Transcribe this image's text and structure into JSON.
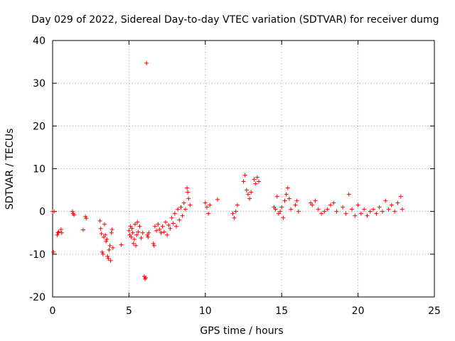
{
  "chart_data": {
    "type": "scatter",
    "title": "Day 029 of 2022, Sidereal Day-to-day VTEC variation (SDTVAR) for receiver dumg",
    "xlabel": "GPS time / hours",
    "ylabel": "SDTVAR / TECUs",
    "xlim": [
      0,
      25
    ],
    "ylim": [
      -20,
      40
    ],
    "xticks": [
      0,
      5,
      10,
      15,
      20,
      25
    ],
    "yticks": [
      -20,
      -10,
      0,
      10,
      20,
      30,
      40
    ],
    "grid": true,
    "marker": "plus",
    "color": "#ff0000",
    "series": [
      {
        "name": "SDTVAR",
        "points": [
          [
            0.0,
            0.0
          ],
          [
            0.05,
            -9.5
          ],
          [
            0.1,
            0.0
          ],
          [
            0.3,
            -5.5
          ],
          [
            0.35,
            -5.0
          ],
          [
            0.4,
            -4.8
          ],
          [
            0.55,
            -4.2
          ],
          [
            0.6,
            -5.0
          ],
          [
            1.3,
            0.0
          ],
          [
            1.35,
            -0.5
          ],
          [
            1.4,
            -0.8
          ],
          [
            2.0,
            -4.3
          ],
          [
            2.15,
            -1.2
          ],
          [
            2.2,
            -1.6
          ],
          [
            3.1,
            -2.2
          ],
          [
            3.15,
            -4.0
          ],
          [
            3.2,
            -5.2
          ],
          [
            3.25,
            -9.5
          ],
          [
            3.3,
            -10.0
          ],
          [
            3.35,
            -6.0
          ],
          [
            3.4,
            -3.0
          ],
          [
            3.45,
            -5.5
          ],
          [
            3.5,
            -7.0
          ],
          [
            3.55,
            -6.5
          ],
          [
            3.6,
            -10.5
          ],
          [
            3.65,
            -11.0
          ],
          [
            3.7,
            -9.0
          ],
          [
            3.75,
            -8.0
          ],
          [
            3.8,
            -11.5
          ],
          [
            3.85,
            -5.0
          ],
          [
            3.9,
            -4.2
          ],
          [
            3.95,
            -8.5
          ],
          [
            4.5,
            -7.8
          ],
          [
            5.0,
            -4.5
          ],
          [
            5.05,
            -5.5
          ],
          [
            5.1,
            -3.5
          ],
          [
            5.15,
            -6.0
          ],
          [
            5.2,
            -4.0
          ],
          [
            5.25,
            -5.0
          ],
          [
            5.3,
            -7.5
          ],
          [
            5.35,
            -6.5
          ],
          [
            5.4,
            -3.0
          ],
          [
            5.45,
            -8.0
          ],
          [
            5.5,
            -5.5
          ],
          [
            5.55,
            -2.5
          ],
          [
            5.6,
            -4.8
          ],
          [
            5.7,
            -3.5
          ],
          [
            5.8,
            -6.2
          ],
          [
            5.9,
            -5.0
          ],
          [
            6.0,
            -15.2
          ],
          [
            6.05,
            -15.8
          ],
          [
            6.1,
            -15.5
          ],
          [
            6.15,
            34.7
          ],
          [
            6.2,
            -5.5
          ],
          [
            6.25,
            -6.0
          ],
          [
            6.3,
            -5.0
          ],
          [
            6.6,
            -7.5
          ],
          [
            6.65,
            -8.0
          ],
          [
            6.7,
            -3.5
          ],
          [
            6.8,
            -4.5
          ],
          [
            6.9,
            -3.0
          ],
          [
            7.0,
            -4.2
          ],
          [
            7.1,
            -5.0
          ],
          [
            7.2,
            -3.5
          ],
          [
            7.3,
            -4.8
          ],
          [
            7.4,
            -2.5
          ],
          [
            7.5,
            -5.5
          ],
          [
            7.6,
            -3.2
          ],
          [
            7.7,
            -4.0
          ],
          [
            7.8,
            -1.5
          ],
          [
            7.9,
            -2.8
          ],
          [
            8.0,
            -0.5
          ],
          [
            8.1,
            -3.5
          ],
          [
            8.2,
            0.5
          ],
          [
            8.3,
            -2.0
          ],
          [
            8.4,
            1.0
          ],
          [
            8.5,
            -1.0
          ],
          [
            8.6,
            2.0
          ],
          [
            8.7,
            0.5
          ],
          [
            8.8,
            5.5
          ],
          [
            8.85,
            4.5
          ],
          [
            8.9,
            3.0
          ],
          [
            9.0,
            1.5
          ],
          [
            10.0,
            2.0
          ],
          [
            10.1,
            1.0
          ],
          [
            10.2,
            -0.5
          ],
          [
            10.3,
            1.5
          ],
          [
            10.8,
            2.8
          ],
          [
            11.8,
            -0.5
          ],
          [
            11.9,
            -1.5
          ],
          [
            12.0,
            0.0
          ],
          [
            12.1,
            1.5
          ],
          [
            12.5,
            7.0
          ],
          [
            12.6,
            8.5
          ],
          [
            12.7,
            5.0
          ],
          [
            12.8,
            4.0
          ],
          [
            12.9,
            3.0
          ],
          [
            13.0,
            4.5
          ],
          [
            13.2,
            7.5
          ],
          [
            13.3,
            6.5
          ],
          [
            13.4,
            8.0
          ],
          [
            13.5,
            7.0
          ],
          [
            14.5,
            1.0
          ],
          [
            14.6,
            0.5
          ],
          [
            14.7,
            3.5
          ],
          [
            14.8,
            -0.5
          ],
          [
            14.9,
            0.0
          ],
          [
            15.0,
            1.0
          ],
          [
            15.1,
            -1.5
          ],
          [
            15.2,
            2.5
          ],
          [
            15.3,
            4.0
          ],
          [
            15.4,
            5.5
          ],
          [
            15.5,
            3.0
          ],
          [
            15.6,
            0.5
          ],
          [
            15.9,
            1.5
          ],
          [
            16.0,
            2.5
          ],
          [
            16.1,
            0.0
          ],
          [
            16.9,
            2.0
          ],
          [
            17.0,
            1.5
          ],
          [
            17.2,
            2.5
          ],
          [
            17.4,
            0.5
          ],
          [
            17.6,
            -0.5
          ],
          [
            17.8,
            0.0
          ],
          [
            18.0,
            0.5
          ],
          [
            18.2,
            1.5
          ],
          [
            18.4,
            2.0
          ],
          [
            18.6,
            0.0
          ],
          [
            19.0,
            1.0
          ],
          [
            19.2,
            -0.5
          ],
          [
            19.4,
            4.0
          ],
          [
            19.6,
            0.5
          ],
          [
            19.8,
            -1.0
          ],
          [
            20.0,
            1.5
          ],
          [
            20.2,
            -0.5
          ],
          [
            20.4,
            0.5
          ],
          [
            20.6,
            -1.0
          ],
          [
            20.8,
            0.0
          ],
          [
            21.0,
            0.5
          ],
          [
            21.2,
            -0.5
          ],
          [
            21.4,
            1.0
          ],
          [
            21.6,
            0.0
          ],
          [
            21.8,
            2.5
          ],
          [
            22.0,
            0.5
          ],
          [
            22.2,
            1.5
          ],
          [
            22.4,
            0.0
          ],
          [
            22.6,
            2.0
          ],
          [
            22.8,
            3.5
          ],
          [
            22.9,
            0.5
          ]
        ]
      }
    ]
  }
}
